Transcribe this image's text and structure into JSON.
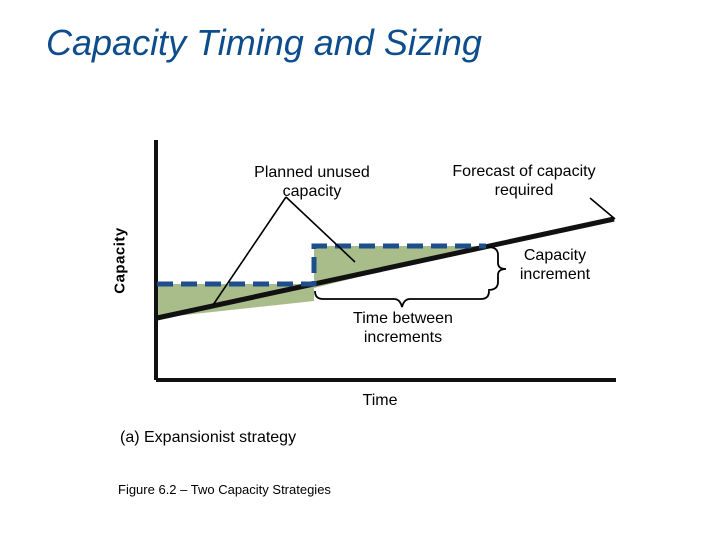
{
  "title": "Capacity Timing and Sizing",
  "diagram": {
    "y_axis_label": "Capacity",
    "x_axis_label": "Time",
    "annotations": {
      "planned_unused_capacity": [
        "Planned unused",
        "capacity"
      ],
      "forecast_of_capacity_required": [
        "Forecast of capacity",
        "required"
      ],
      "capacity_increment": [
        "Capacity",
        "increment"
      ],
      "time_between_increments": [
        "Time between",
        "increments"
      ]
    },
    "strategy_label": "(a) Expansionist strategy",
    "figure_caption": "Figure 6.2 – Two Capacity Strategies",
    "colors": {
      "title": "#0d4d8c",
      "capacity_dashed": "#1f4e8c",
      "unused_fill": "#a9bd8a",
      "forecast_line": "#111111",
      "axes": "#111111"
    }
  }
}
